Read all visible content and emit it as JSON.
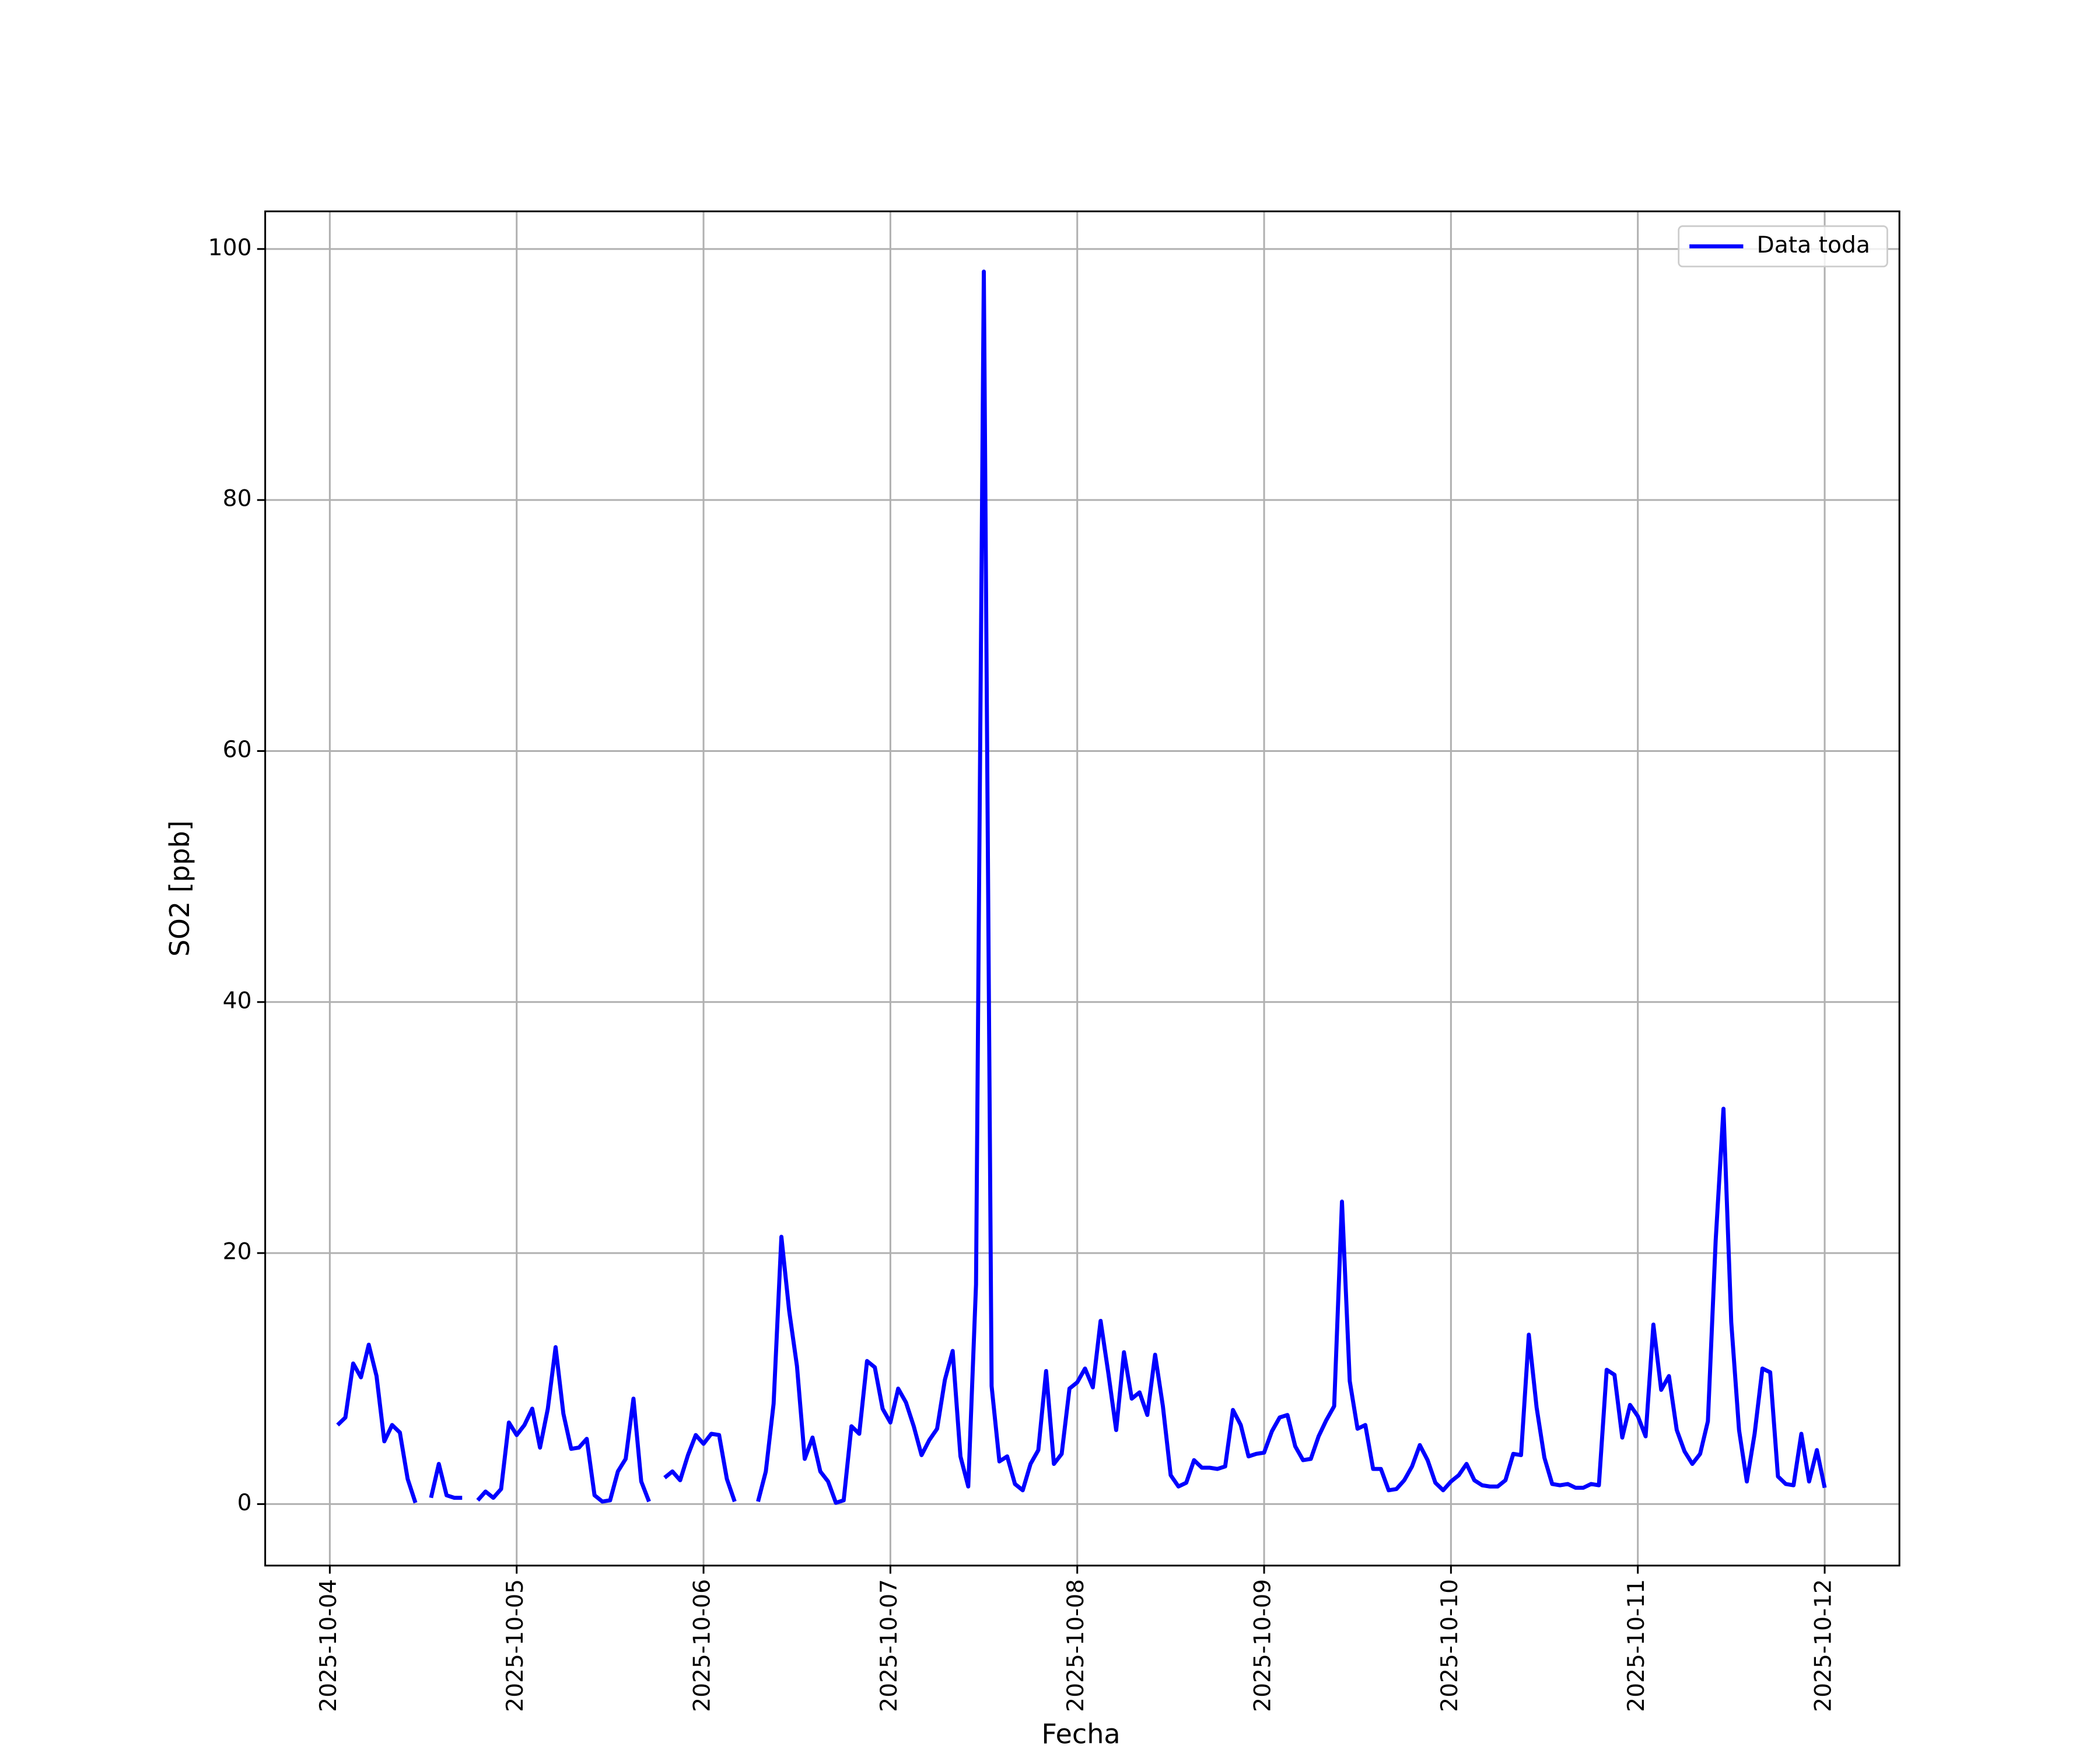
{
  "chart_data": {
    "type": "line",
    "xlabel": "Fecha",
    "ylabel": "SO2 [ppb]",
    "xlim": [
      "2025-10-03 15:42",
      "2025-10-12 09:36"
    ],
    "xticks": [
      "2025-10-04",
      "2025-10-05",
      "2025-10-06",
      "2025-10-07",
      "2025-10-08",
      "2025-10-09",
      "2025-10-10",
      "2025-10-11",
      "2025-10-12"
    ],
    "ylim": [
      -4.9,
      103
    ],
    "yticks": [
      0,
      20,
      40,
      60,
      80,
      100
    ],
    "grid": true,
    "legend": "upper right",
    "x": [
      "2025-10-04 01:00",
      "2025-10-04 02:00",
      "2025-10-04 03:00",
      "2025-10-04 04:00",
      "2025-10-04 05:00",
      "2025-10-04 06:00",
      "2025-10-04 07:00",
      "2025-10-04 08:00",
      "2025-10-04 09:00",
      "2025-10-04 10:00",
      "2025-10-04 11:00",
      "2025-10-04 12:00",
      "2025-10-04 13:00",
      "2025-10-04 14:00",
      "2025-10-04 15:00",
      "2025-10-04 16:00",
      "2025-10-04 17:00",
      "2025-10-04 18:00",
      "2025-10-04 19:00",
      "2025-10-04 20:00",
      "2025-10-04 21:00",
      "2025-10-04 22:00",
      "2025-10-04 23:00",
      "2025-10-05 00:00",
      "2025-10-05 01:00",
      "2025-10-05 02:00",
      "2025-10-05 03:00",
      "2025-10-05 04:00",
      "2025-10-05 05:00",
      "2025-10-05 06:00",
      "2025-10-05 07:00",
      "2025-10-05 08:00",
      "2025-10-05 09:00",
      "2025-10-05 10:00",
      "2025-10-05 11:00",
      "2025-10-05 12:00",
      "2025-10-05 13:00",
      "2025-10-05 14:00",
      "2025-10-05 15:00",
      "2025-10-05 16:00",
      "2025-10-05 17:00",
      "2025-10-05 18:00",
      "2025-10-05 19:00",
      "2025-10-05 20:00",
      "2025-10-05 21:00",
      "2025-10-05 22:00",
      "2025-10-05 23:00",
      "2025-10-06 00:00",
      "2025-10-06 01:00",
      "2025-10-06 02:00",
      "2025-10-06 03:00",
      "2025-10-06 04:00",
      "2025-10-06 05:00",
      "2025-10-06 06:00",
      "2025-10-06 07:00",
      "2025-10-06 08:00",
      "2025-10-06 09:00",
      "2025-10-06 10:00",
      "2025-10-06 11:00",
      "2025-10-06 12:00",
      "2025-10-06 13:00",
      "2025-10-06 14:00",
      "2025-10-06 15:00",
      "2025-10-06 16:00",
      "2025-10-06 17:00",
      "2025-10-06 18:00",
      "2025-10-06 19:00",
      "2025-10-06 20:00",
      "2025-10-06 21:00",
      "2025-10-06 22:00",
      "2025-10-06 23:00",
      "2025-10-07 00:00",
      "2025-10-07 01:00",
      "2025-10-07 02:00",
      "2025-10-07 03:00",
      "2025-10-07 04:00",
      "2025-10-07 05:00",
      "2025-10-07 06:00",
      "2025-10-07 07:00",
      "2025-10-07 08:00",
      "2025-10-07 09:00",
      "2025-10-07 10:00",
      "2025-10-07 11:00",
      "2025-10-07 12:00",
      "2025-10-07 13:00",
      "2025-10-07 14:00",
      "2025-10-07 15:00",
      "2025-10-07 16:00",
      "2025-10-07 17:00",
      "2025-10-07 18:00",
      "2025-10-07 19:00",
      "2025-10-07 20:00",
      "2025-10-07 21:00",
      "2025-10-07 22:00",
      "2025-10-07 23:00",
      "2025-10-08 00:00",
      "2025-10-08 01:00",
      "2025-10-08 02:00",
      "2025-10-08 03:00",
      "2025-10-08 04:00",
      "2025-10-08 05:00",
      "2025-10-08 06:00",
      "2025-10-08 07:00",
      "2025-10-08 08:00",
      "2025-10-08 09:00",
      "2025-10-08 10:00",
      "2025-10-08 11:00",
      "2025-10-08 12:00",
      "2025-10-08 13:00",
      "2025-10-08 14:00",
      "2025-10-08 15:00",
      "2025-10-08 16:00",
      "2025-10-08 17:00",
      "2025-10-08 18:00",
      "2025-10-08 19:00",
      "2025-10-08 20:00",
      "2025-10-08 21:00",
      "2025-10-08 22:00",
      "2025-10-08 23:00",
      "2025-10-09 00:00",
      "2025-10-09 01:00",
      "2025-10-09 02:00",
      "2025-10-09 03:00",
      "2025-10-09 04:00",
      "2025-10-09 05:00",
      "2025-10-09 06:00",
      "2025-10-09 07:00",
      "2025-10-09 08:00",
      "2025-10-09 09:00",
      "2025-10-09 10:00",
      "2025-10-09 11:00",
      "2025-10-09 12:00",
      "2025-10-09 13:00",
      "2025-10-09 14:00",
      "2025-10-09 15:00",
      "2025-10-09 16:00",
      "2025-10-09 17:00",
      "2025-10-09 18:00",
      "2025-10-09 19:00",
      "2025-10-09 20:00",
      "2025-10-09 21:00",
      "2025-10-09 22:00",
      "2025-10-09 23:00",
      "2025-10-10 00:00",
      "2025-10-10 01:00",
      "2025-10-10 02:00",
      "2025-10-10 03:00",
      "2025-10-10 04:00",
      "2025-10-10 05:00",
      "2025-10-10 06:00",
      "2025-10-10 07:00",
      "2025-10-10 08:00",
      "2025-10-10 09:00",
      "2025-10-10 10:00",
      "2025-10-10 11:00",
      "2025-10-10 12:00",
      "2025-10-10 13:00",
      "2025-10-10 14:00",
      "2025-10-10 15:00",
      "2025-10-10 16:00",
      "2025-10-10 17:00",
      "2025-10-10 18:00",
      "2025-10-10 19:00",
      "2025-10-10 20:00",
      "2025-10-10 21:00",
      "2025-10-10 22:00",
      "2025-10-10 23:00",
      "2025-10-11 00:00",
      "2025-10-11 01:00",
      "2025-10-11 02:00",
      "2025-10-11 03:00",
      "2025-10-11 04:00",
      "2025-10-11 05:00",
      "2025-10-11 06:00",
      "2025-10-11 07:00",
      "2025-10-11 08:00",
      "2025-10-11 09:00",
      "2025-10-11 10:00",
      "2025-10-11 11:00",
      "2025-10-11 12:00",
      "2025-10-11 13:00",
      "2025-10-11 14:00",
      "2025-10-11 15:00",
      "2025-10-11 16:00",
      "2025-10-11 17:00",
      "2025-10-11 18:00",
      "2025-10-11 19:00",
      "2025-10-11 20:00",
      "2025-10-11 21:00",
      "2025-10-11 22:00",
      "2025-10-11 23:00",
      "2025-10-12 00:00"
    ],
    "series": [
      {
        "name": "Data toda",
        "color": "#0000ff",
        "values": [
          6.3,
          6.9,
          11.2,
          10.1,
          12.7,
          10.2,
          5.0,
          6.3,
          5.7,
          2.0,
          0.1,
          null,
          0.5,
          3.2,
          0.7,
          0.5,
          0.5,
          null,
          0.3,
          1.0,
          0.5,
          1.2,
          6.5,
          5.5,
          6.3,
          7.6,
          4.5,
          7.6,
          12.5,
          7.2,
          4.4,
          4.5,
          5.2,
          0.7,
          0.2,
          0.3,
          2.6,
          3.6,
          8.4,
          1.8,
          0.2,
          null,
          2.1,
          2.6,
          1.9,
          3.9,
          5.5,
          4.8,
          5.6,
          5.5,
          2.0,
          0.2,
          null,
          null,
          0.2,
          2.6,
          8.0,
          21.3,
          15.4,
          11.0,
          3.6,
          5.3,
          2.6,
          1.8,
          0.1,
          0.3,
          6.2,
          5.6,
          11.4,
          10.9,
          7.6,
          6.5,
          9.2,
          8.1,
          6.2,
          3.9,
          5.1,
          6.0,
          9.9,
          12.2,
          3.8,
          1.4,
          17.5,
          98.2,
          9.4,
          3.4,
          3.8,
          1.6,
          1.1,
          3.2,
          4.3,
          10.6,
          3.2,
          4.0,
          9.2,
          9.7,
          10.8,
          9.3,
          14.6,
          10.4,
          5.9,
          12.1,
          8.4,
          8.9,
          7.1,
          11.9,
          7.8,
          2.3,
          1.4,
          1.7,
          3.5,
          2.9,
          2.9,
          2.8,
          3.0,
          7.5,
          6.3,
          3.8,
          4.0,
          4.1,
          5.8,
          6.9,
          7.1,
          4.6,
          3.5,
          3.6,
          5.4,
          6.7,
          7.8,
          24.1,
          9.8,
          6.0,
          6.3,
          2.8,
          2.8,
          1.1,
          1.2,
          1.9,
          3.0,
          4.7,
          3.5,
          1.7,
          1.1,
          1.8,
          2.3,
          3.2,
          1.9,
          1.5,
          1.4,
          1.4,
          1.9,
          4.0,
          3.9,
          13.5,
          7.7,
          3.7,
          1.6,
          1.5,
          1.6,
          1.3,
          1.3,
          1.6,
          1.5,
          10.7,
          10.3,
          5.3,
          7.9,
          7.0,
          5.4,
          14.3,
          9.1,
          10.2,
          5.9,
          4.2,
          3.2,
          4.0,
          6.6,
          21.0,
          31.5,
          14.5,
          5.9,
          1.8,
          5.6,
          10.8,
          10.5,
          2.2,
          1.6,
          1.5,
          5.6,
          1.8,
          4.3,
          1.3
        ]
      }
    ]
  }
}
